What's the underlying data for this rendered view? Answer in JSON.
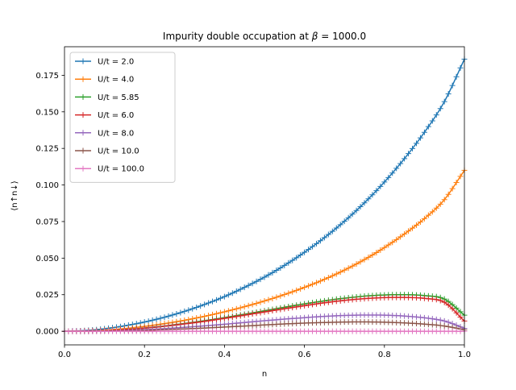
{
  "chart_data": {
    "type": "line",
    "title": "Impurity double occupation at β = 1000.0",
    "title_parts": {
      "prefix": "Impurity double occupation at ",
      "beta_symbol": "β",
      "suffix": " = 1000.0"
    },
    "xlabel": "n",
    "ylabel": "⟨n↑n↓⟩",
    "xlim": [
      0.0,
      1.0
    ],
    "ylim": [
      -0.0093,
      0.1945
    ],
    "x_ticks": [
      "0.0",
      "0.2",
      "0.4",
      "0.6",
      "0.8",
      "1.0"
    ],
    "x_tick_values": [
      0.0,
      0.2,
      0.4,
      0.6,
      0.8,
      1.0
    ],
    "y_ticks": [
      "0.000",
      "0.025",
      "0.050",
      "0.075",
      "0.100",
      "0.125",
      "0.150",
      "0.175"
    ],
    "y_tick_values": [
      0.0,
      0.025,
      0.05,
      0.075,
      0.1,
      0.125,
      0.15,
      0.175
    ],
    "grid": false,
    "legend_position": "upper-left",
    "marker": "+",
    "x": [
      0.0,
      0.05,
      0.1,
      0.15,
      0.2,
      0.25,
      0.3,
      0.35,
      0.4,
      0.45,
      0.5,
      0.55,
      0.6,
      0.65,
      0.7,
      0.75,
      0.8,
      0.85,
      0.9,
      0.95,
      1.0
    ],
    "series": [
      {
        "name": "U/t = 2.0",
        "color": "#1f77b4",
        "values": [
          0.0,
          0.0005,
          0.0017,
          0.0037,
          0.0063,
          0.0096,
          0.0136,
          0.0183,
          0.0237,
          0.03,
          0.037,
          0.045,
          0.054,
          0.064,
          0.0752,
          0.0878,
          0.102,
          0.118,
          0.136,
          0.157,
          0.186
        ]
      },
      {
        "name": "U/t = 4.0",
        "color": "#ff7f0e",
        "values": [
          0.0,
          0.0002,
          0.0008,
          0.0018,
          0.0033,
          0.0052,
          0.0075,
          0.0102,
          0.0133,
          0.0168,
          0.0207,
          0.0251,
          0.03,
          0.0355,
          0.0418,
          0.049,
          0.0572,
          0.0665,
          0.077,
          0.09,
          0.11
        ]
      },
      {
        "name": "U/t = 5.85",
        "color": "#2ca02c",
        "values": [
          0.0,
          0.0001,
          0.0004,
          0.0011,
          0.0022,
          0.0036,
          0.0053,
          0.0072,
          0.0093,
          0.0116,
          0.014,
          0.0164,
          0.0187,
          0.0208,
          0.0226,
          0.024,
          0.0248,
          0.025,
          0.0244,
          0.022,
          0.011
        ]
      },
      {
        "name": "U/t = 6.0",
        "color": "#d62728",
        "values": [
          0.0,
          0.0001,
          0.0004,
          0.0011,
          0.0021,
          0.0034,
          0.005,
          0.0068,
          0.0088,
          0.011,
          0.0132,
          0.0154,
          0.0175,
          0.0195,
          0.0211,
          0.0223,
          0.023,
          0.0231,
          0.0225,
          0.0198,
          0.007
        ]
      },
      {
        "name": "U/t = 8.0",
        "color": "#9467bd",
        "values": [
          0.0,
          0.0,
          0.0002,
          0.0005,
          0.0011,
          0.0018,
          0.0027,
          0.0037,
          0.0048,
          0.006,
          0.0072,
          0.0083,
          0.0093,
          0.0102,
          0.0108,
          0.0111,
          0.011,
          0.0104,
          0.0092,
          0.007,
          0.002
        ]
      },
      {
        "name": "U/t = 10.0",
        "color": "#8c564b",
        "values": [
          0.0,
          0.0,
          0.0001,
          0.0003,
          0.0006,
          0.0011,
          0.0016,
          0.0022,
          0.0029,
          0.0036,
          0.0043,
          0.005,
          0.0056,
          0.006,
          0.0063,
          0.0064,
          0.0062,
          0.0057,
          0.0049,
          0.0036,
          0.001
        ]
      },
      {
        "name": "U/t = 100.0",
        "color": "#e377c2",
        "values": [
          0.0,
          0.0,
          0.0,
          0.0,
          0.0,
          0.0,
          0.0,
          0.0,
          0.0,
          0.0,
          0.0,
          0.0,
          0.0,
          0.0,
          0.0,
          0.0,
          0.0,
          0.0,
          0.0,
          0.0,
          0.0
        ]
      }
    ]
  }
}
